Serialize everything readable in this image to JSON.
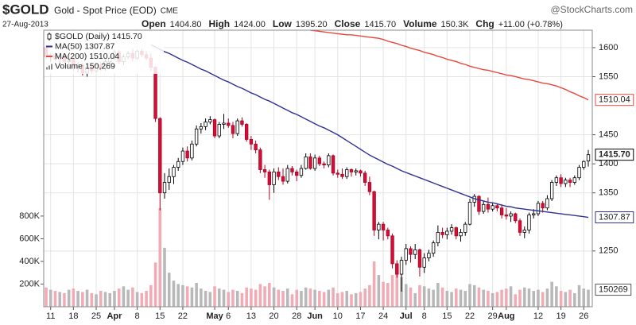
{
  "header": {
    "symbol": "$GOLD",
    "name": "Gold - Spot Price (EOD)",
    "exchange": "CME",
    "source": "@StockCharts.com",
    "date": "27-Aug-2013",
    "quote": [
      {
        "label": "Open",
        "value": "1404.80"
      },
      {
        "label": "High",
        "value": "1424.00"
      },
      {
        "label": "Low",
        "value": "1395.20"
      },
      {
        "label": "Close",
        "value": "1415.70"
      },
      {
        "label": "Volume",
        "value": "150.3K"
      },
      {
        "label": "Chg",
        "value": "+11.00 (+0.78%)"
      }
    ]
  },
  "chart_data": {
    "type": "candlestick",
    "name": "$GOLD (Daily) 1415.70",
    "end_label": "1415.70",
    "up_color": "#ffffff",
    "up_stroke": "#000000",
    "down_color": "#d0103a",
    "down_stroke": "#b00020",
    "ylim": [
      1154,
      1630
    ],
    "yticks": [
      1250,
      1350,
      1400,
      1450,
      1550,
      1600
    ],
    "grid": true,
    "categories": [
      null,
      "11",
      null,
      null,
      null,
      null,
      "18",
      null,
      null,
      null,
      null,
      "25",
      null,
      null,
      null,
      "Apr",
      null,
      null,
      null,
      null,
      "8",
      null,
      null,
      null,
      null,
      "15",
      null,
      null,
      null,
      null,
      "22",
      null,
      null,
      null,
      null,
      null,
      null,
      "May",
      null,
      null,
      "6",
      null,
      null,
      null,
      null,
      "13",
      null,
      null,
      null,
      null,
      "20",
      null,
      null,
      null,
      null,
      "28",
      null,
      null,
      null,
      "Jun",
      null,
      null,
      null,
      null,
      "10",
      null,
      null,
      null,
      null,
      "17",
      null,
      null,
      null,
      null,
      "24",
      null,
      null,
      null,
      null,
      "Jul",
      null,
      null,
      null,
      "8",
      null,
      null,
      null,
      null,
      "15",
      null,
      null,
      null,
      null,
      "22",
      null,
      null,
      null,
      null,
      "29",
      null,
      null,
      "Aug",
      null,
      null,
      null,
      null,
      null,
      null,
      "12",
      null,
      null,
      null,
      null,
      "19",
      null,
      null,
      null,
      null,
      "26",
      null
    ],
    "ohlc": [
      [
        1600,
        1604,
        1580,
        1584
      ],
      [
        1584,
        1590,
        1575,
        1586
      ],
      [
        1586,
        1592,
        1578,
        1580
      ],
      [
        1580,
        1588,
        1570,
        1585
      ],
      [
        1585,
        1590,
        1572,
        1576
      ],
      [
        1576,
        1582,
        1565,
        1580
      ],
      [
        1580,
        1584,
        1560,
        1566
      ],
      [
        1566,
        1576,
        1558,
        1570
      ],
      [
        1570,
        1574,
        1552,
        1556
      ],
      [
        1556,
        1570,
        1550,
        1566
      ],
      [
        1566,
        1572,
        1555,
        1560
      ],
      [
        1560,
        1574,
        1556,
        1570
      ],
      [
        1570,
        1576,
        1560,
        1564
      ],
      [
        1564,
        1580,
        1560,
        1576
      ],
      [
        1576,
        1585,
        1570,
        1582
      ],
      [
        1582,
        1596,
        1578,
        1592
      ],
      [
        1592,
        1596,
        1572,
        1576
      ],
      [
        1576,
        1588,
        1570,
        1584
      ],
      [
        1584,
        1594,
        1580,
        1590
      ],
      [
        1590,
        1598,
        1576,
        1582
      ],
      [
        1582,
        1596,
        1580,
        1594
      ],
      [
        1594,
        1598,
        1584,
        1588
      ],
      [
        1588,
        1594,
        1578,
        1582
      ],
      [
        1582,
        1590,
        1560,
        1566
      ],
      [
        1566,
        1568,
        1472,
        1478
      ],
      [
        1478,
        1480,
        1320,
        1350
      ],
      [
        1350,
        1384,
        1340,
        1368
      ],
      [
        1368,
        1392,
        1355,
        1378
      ],
      [
        1378,
        1398,
        1365,
        1394
      ],
      [
        1394,
        1410,
        1388,
        1404
      ],
      [
        1404,
        1428,
        1398,
        1422
      ],
      [
        1422,
        1430,
        1404,
        1410
      ],
      [
        1410,
        1440,
        1406,
        1434
      ],
      [
        1434,
        1466,
        1430,
        1460
      ],
      [
        1460,
        1470,
        1452,
        1464
      ],
      [
        1464,
        1478,
        1458,
        1472
      ],
      [
        1472,
        1482,
        1468,
        1476
      ],
      [
        1476,
        1478,
        1444,
        1448
      ],
      [
        1448,
        1472,
        1444,
        1468
      ],
      [
        1468,
        1486,
        1460,
        1470
      ],
      [
        1470,
        1478,
        1462,
        1466
      ],
      [
        1466,
        1472,
        1444,
        1452
      ],
      [
        1452,
        1478,
        1448,
        1474
      ],
      [
        1474,
        1480,
        1464,
        1468
      ],
      [
        1468,
        1470,
        1438,
        1442
      ],
      [
        1442,
        1448,
        1424,
        1434
      ],
      [
        1434,
        1440,
        1418,
        1424
      ],
      [
        1424,
        1428,
        1384,
        1390
      ],
      [
        1390,
        1398,
        1376,
        1386
      ],
      [
        1386,
        1390,
        1338,
        1364
      ],
      [
        1364,
        1392,
        1350,
        1386
      ],
      [
        1386,
        1394,
        1372,
        1378
      ],
      [
        1378,
        1392,
        1364,
        1370
      ],
      [
        1370,
        1398,
        1366,
        1392
      ],
      [
        1392,
        1396,
        1380,
        1386
      ],
      [
        1386,
        1390,
        1370,
        1380
      ],
      [
        1380,
        1398,
        1376,
        1392
      ],
      [
        1392,
        1418,
        1390,
        1412
      ],
      [
        1412,
        1418,
        1390,
        1392
      ],
      [
        1392,
        1416,
        1388,
        1410
      ],
      [
        1410,
        1414,
        1396,
        1400
      ],
      [
        1400,
        1404,
        1392,
        1398
      ],
      [
        1398,
        1418,
        1394,
        1414
      ],
      [
        1414,
        1416,
        1380,
        1384
      ],
      [
        1384,
        1390,
        1376,
        1382
      ],
      [
        1382,
        1392,
        1374,
        1378
      ],
      [
        1378,
        1394,
        1374,
        1390
      ],
      [
        1390,
        1392,
        1378,
        1386
      ],
      [
        1386,
        1392,
        1380,
        1388
      ],
      [
        1388,
        1390,
        1378,
        1384
      ],
      [
        1384,
        1388,
        1362,
        1368
      ],
      [
        1368,
        1378,
        1346,
        1352
      ],
      [
        1352,
        1354,
        1276,
        1286
      ],
      [
        1286,
        1300,
        1270,
        1296
      ],
      [
        1296,
        1300,
        1268,
        1286
      ],
      [
        1286,
        1290,
        1270,
        1276
      ],
      [
        1276,
        1280,
        1220,
        1228
      ],
      [
        1228,
        1234,
        1204,
        1210
      ],
      [
        1210,
        1240,
        1180,
        1234
      ],
      [
        1234,
        1262,
        1226,
        1254
      ],
      [
        1254,
        1258,
        1230,
        1244
      ],
      [
        1244,
        1262,
        1236,
        1252
      ],
      [
        1252,
        1254,
        1206,
        1222
      ],
      [
        1222,
        1246,
        1212,
        1238
      ],
      [
        1238,
        1252,
        1232,
        1246
      ],
      [
        1246,
        1268,
        1240,
        1264
      ],
      [
        1264,
        1294,
        1258,
        1282
      ],
      [
        1282,
        1290,
        1272,
        1278
      ],
      [
        1278,
        1290,
        1270,
        1284
      ],
      [
        1284,
        1296,
        1278,
        1290
      ],
      [
        1290,
        1292,
        1270,
        1276
      ],
      [
        1276,
        1288,
        1266,
        1282
      ],
      [
        1282,
        1300,
        1276,
        1296
      ],
      [
        1296,
        1340,
        1294,
        1334
      ],
      [
        1334,
        1348,
        1326,
        1344
      ],
      [
        1344,
        1346,
        1312,
        1318
      ],
      [
        1318,
        1336,
        1314,
        1330
      ],
      [
        1330,
        1342,
        1316,
        1322
      ],
      [
        1322,
        1332,
        1318,
        1328
      ],
      [
        1328,
        1332,
        1318,
        1324
      ],
      [
        1324,
        1330,
        1306,
        1312
      ],
      [
        1312,
        1324,
        1304,
        1310
      ],
      [
        1310,
        1318,
        1300,
        1314
      ],
      [
        1314,
        1316,
        1298,
        1302
      ],
      [
        1302,
        1306,
        1276,
        1282
      ],
      [
        1282,
        1292,
        1272,
        1286
      ],
      [
        1286,
        1316,
        1280,
        1312
      ],
      [
        1312,
        1322,
        1306,
        1314
      ],
      [
        1314,
        1336,
        1310,
        1332
      ],
      [
        1332,
        1336,
        1316,
        1324
      ],
      [
        1324,
        1346,
        1320,
        1340
      ],
      [
        1340,
        1372,
        1336,
        1368
      ],
      [
        1368,
        1380,
        1362,
        1376
      ],
      [
        1376,
        1382,
        1360,
        1366
      ],
      [
        1366,
        1376,
        1360,
        1372
      ],
      [
        1372,
        1376,
        1360,
        1368
      ],
      [
        1368,
        1380,
        1364,
        1376
      ],
      [
        1376,
        1398,
        1372,
        1394
      ],
      [
        1394,
        1406,
        1390,
        1404
      ],
      [
        1404.8,
        1424,
        1395.2,
        1415.7
      ]
    ],
    "overlays": [
      {
        "name": "MA(50) 1307.87",
        "color": "#2e3192",
        "end_label": "1307.87",
        "values": [
          null,
          null,
          null,
          null,
          null,
          null,
          null,
          null,
          null,
          null,
          null,
          null,
          null,
          null,
          null,
          null,
          null,
          null,
          null,
          null,
          null,
          null,
          null,
          1605,
          1601,
          1597,
          1593,
          1590,
          1586,
          1582,
          1578,
          1575,
          1571,
          1567,
          1563,
          1560,
          1556,
          1552,
          1548,
          1544,
          1541,
          1537,
          1533,
          1530,
          1526,
          1522,
          1519,
          1515,
          1511,
          1508,
          1504,
          1500,
          1496,
          1492,
          1488,
          1485,
          1481,
          1477,
          1473,
          1469,
          1465,
          1462,
          1458,
          1454,
          1450,
          1445,
          1440,
          1435,
          1430,
          1425,
          1420,
          1415,
          1411,
          1407,
          1403,
          1399,
          1396,
          1392,
          1388,
          1385,
          1382,
          1379,
          1376,
          1373,
          1370,
          1367,
          1364,
          1361,
          1358,
          1355,
          1352,
          1349,
          1346,
          1343,
          1340,
          1338,
          1336,
          1334,
          1333,
          1331,
          1329,
          1327,
          1326,
          1324,
          1323,
          1322,
          1321,
          1320,
          1319,
          1318,
          1317,
          1316,
          1315,
          1314,
          1313,
          1312,
          1311,
          1310,
          1309,
          1307.87
        ]
      },
      {
        "name": "MA(200) 1510.04",
        "color": "#e8483b",
        "end_label": "1510.04",
        "values": [
          null,
          null,
          null,
          null,
          null,
          null,
          null,
          null,
          null,
          null,
          null,
          null,
          null,
          null,
          null,
          null,
          null,
          null,
          null,
          null,
          null,
          null,
          null,
          null,
          null,
          null,
          null,
          null,
          null,
          null,
          null,
          null,
          null,
          null,
          null,
          null,
          null,
          null,
          null,
          null,
          null,
          null,
          null,
          null,
          null,
          null,
          null,
          null,
          null,
          null,
          null,
          null,
          null,
          null,
          null,
          null,
          null,
          null,
          1630,
          1629,
          1628,
          1627,
          1626,
          1625,
          1624,
          1623,
          1622,
          1622,
          1621,
          1620,
          1619,
          1618,
          1617,
          1616,
          1614,
          1611,
          1609,
          1607,
          1604,
          1602,
          1599,
          1597,
          1595,
          1592,
          1590,
          1588,
          1585,
          1583,
          1580,
          1578,
          1576,
          1573,
          1571,
          1568,
          1566,
          1564,
          1562,
          1561,
          1559,
          1557,
          1555,
          1553,
          1552,
          1550,
          1548,
          1546,
          1545,
          1543,
          1541,
          1539,
          1538,
          1536,
          1534,
          1531,
          1528,
          1524,
          1521,
          1517,
          1514,
          1510.04
        ]
      }
    ],
    "volume": {
      "name": "Volume 150,269",
      "end_label": "150269",
      "up_color": "#b8b8b8",
      "down_color": "#f2aab5",
      "y2lim": [
        0,
        2440000
      ],
      "y2ticks": [
        {
          "value": 200000,
          "label": "200K"
        },
        {
          "value": 400000,
          "label": "400K"
        },
        {
          "value": 600000,
          "label": "600K"
        },
        {
          "value": 800000,
          "label": "800K"
        }
      ],
      "values": [
        170000,
        150000,
        140000,
        130000,
        120000,
        150000,
        160000,
        140000,
        130000,
        150000,
        120000,
        110000,
        140000,
        130000,
        120000,
        140000,
        160000,
        180000,
        150000,
        170000,
        130000,
        120000,
        140000,
        190000,
        390000,
        870000,
        520000,
        300000,
        230000,
        200000,
        190000,
        180000,
        170000,
        210000,
        160000,
        140000,
        130000,
        180000,
        160000,
        150000,
        130000,
        150000,
        140000,
        120000,
        170000,
        160000,
        150000,
        200000,
        180000,
        210000,
        170000,
        150000,
        140000,
        160000,
        110000,
        150000,
        140000,
        170000,
        160000,
        150000,
        140000,
        130000,
        150000,
        170000,
        120000,
        130000,
        140000,
        110000,
        120000,
        130000,
        160000,
        190000,
        400000,
        280000,
        220000,
        210000,
        280000,
        320000,
        260000,
        200000,
        170000,
        120000,
        190000,
        180000,
        160000,
        150000,
        210000,
        170000,
        140000,
        130000,
        160000,
        150000,
        140000,
        200000,
        190000,
        170000,
        150000,
        140000,
        120000,
        130000,
        150000,
        160000,
        180000,
        110000,
        150000,
        170000,
        160000,
        140000,
        150000,
        130000,
        160000,
        220000,
        180000,
        140000,
        130000,
        150000,
        120000,
        190000,
        160000,
        150269
      ]
    }
  }
}
